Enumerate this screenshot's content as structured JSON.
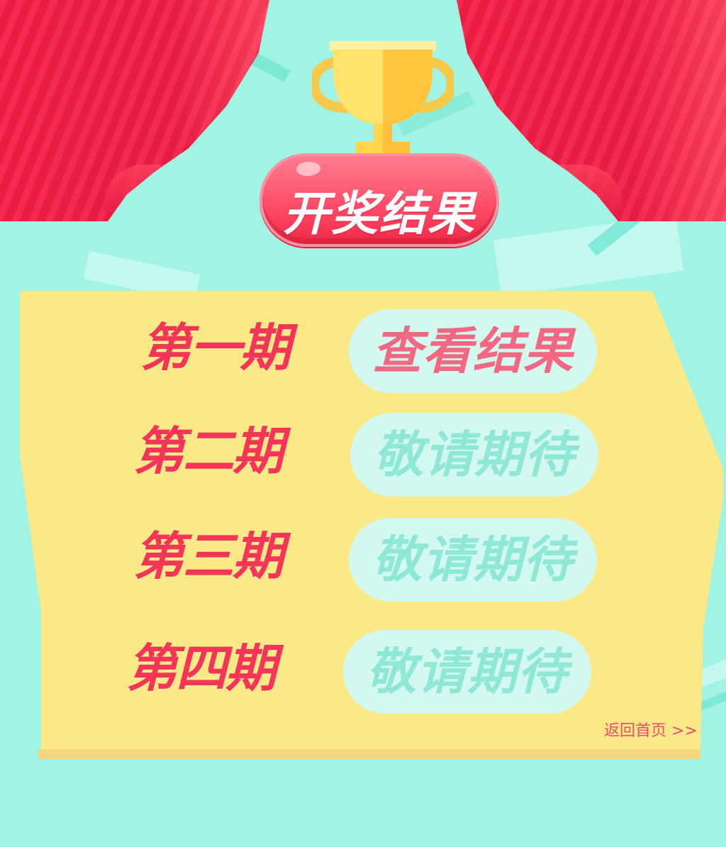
{
  "hero": {
    "title": "开奖结果"
  },
  "periods": [
    {
      "label": "第一期",
      "action": "查看结果"
    },
    {
      "label": "第二期",
      "action": "敬请期待"
    },
    {
      "label": "第三期",
      "action": "敬请期待"
    },
    {
      "label": "第四期",
      "action": "敬请期待"
    }
  ],
  "footer": {
    "back_home": "返回首页 >>"
  },
  "colors": {
    "background": "#a1f3e3",
    "curtain_red": "#ef1d46",
    "panel_yellow": "#fbe887",
    "title_red": "#f53557",
    "result_pink": "#f26882",
    "pending_green": "#8ee8d5",
    "trophy_gold": "#ffd84d"
  },
  "icons": {
    "trophy": "trophy-icon"
  }
}
